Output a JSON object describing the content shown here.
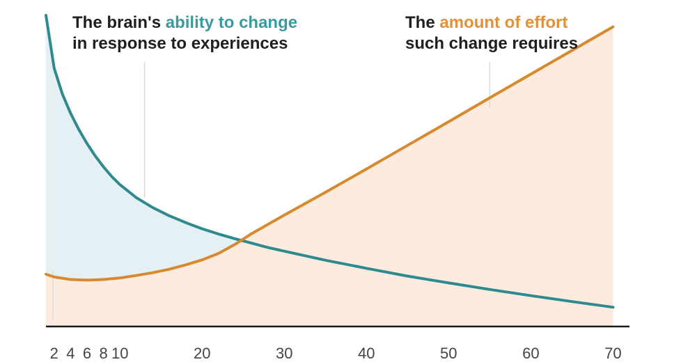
{
  "chart_data": {
    "type": "area",
    "x_ticks": [
      2,
      4,
      6,
      8,
      10,
      20,
      30,
      40,
      50,
      60,
      70
    ],
    "xlim": [
      1,
      72
    ],
    "ylim": [
      0,
      100
    ],
    "grid": false,
    "series": [
      {
        "id": "ability",
        "color": "#2e8a8e",
        "fill": "#e5f0f4",
        "label_parts": [
          "The brain's ",
          "ability to change",
          "in response to experiences"
        ],
        "x": [
          1,
          2,
          3,
          4,
          5,
          6,
          7,
          8,
          9,
          10,
          12,
          14,
          16,
          18,
          20,
          22,
          24,
          26,
          28,
          30,
          35,
          40,
          45,
          50,
          55,
          60,
          65,
          70
        ],
        "y": [
          100,
          83,
          74.7,
          68.5,
          63.3,
          58.8,
          54.8,
          51.3,
          48.2,
          45.6,
          41.4,
          38.2,
          35.6,
          33.4,
          31.4,
          29.7,
          28.2,
          26.8,
          25.4,
          24.2,
          21.3,
          18.7,
          16.2,
          14,
          11.9,
          9.9,
          8,
          6.2
        ]
      },
      {
        "id": "effort",
        "color": "#d8892e",
        "fill": "#fdebe0",
        "label_parts": [
          "The ",
          "amount of effort",
          "such change requires"
        ],
        "x": [
          1,
          2,
          4,
          6,
          8,
          10,
          12,
          14,
          16,
          18,
          20,
          22,
          24,
          26,
          28,
          30,
          35,
          40,
          45,
          50,
          55,
          60,
          65,
          70
        ],
        "y": [
          16.8,
          15.9,
          15.1,
          14.9,
          15.1,
          15.6,
          16.4,
          17.3,
          18.4,
          19.8,
          21.4,
          23.5,
          26.4,
          29.8,
          32.8,
          35.8,
          43.1,
          50.6,
          58.2,
          65.8,
          73.5,
          81.1,
          88.7,
          96.3
        ]
      }
    ],
    "annotations": [
      {
        "series": "ability",
        "x": 13,
        "y_top": 85,
        "y_bottom": 41.5
      },
      {
        "series": "effort",
        "x": 55,
        "y_top": 85,
        "y_bottom": 70.5
      }
    ]
  }
}
